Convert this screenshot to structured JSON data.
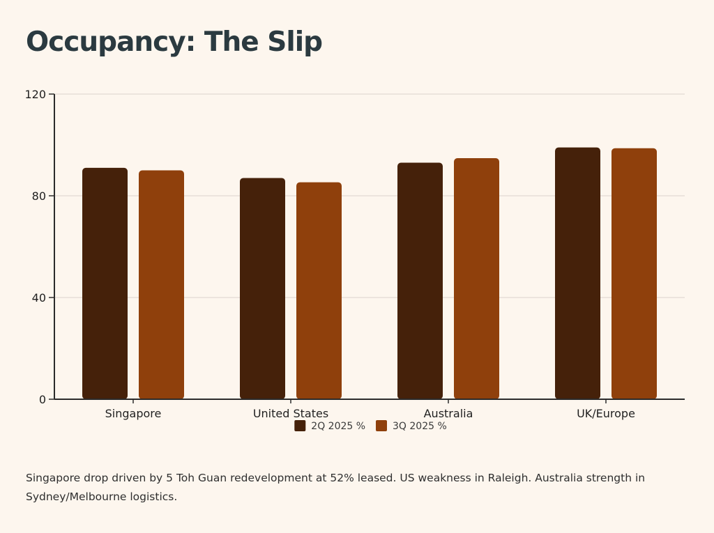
{
  "page": {
    "title": "Occupancy: The Slip"
  },
  "chart_data": {
    "type": "bar",
    "title": "Occupancy: The Slip",
    "categories": [
      "Singapore",
      "United States",
      "Australia",
      "UK/Europe"
    ],
    "series": [
      {
        "name": "2Q 2025 %",
        "color": "#45210A",
        "values": [
          91,
          87,
          93,
          99
        ]
      },
      {
        "name": "3Q 2025 %",
        "color": "#8F400C",
        "values": [
          90,
          85.3,
          94.8,
          98.7
        ]
      }
    ],
    "y_ticks": [
      0,
      40,
      80,
      120
    ],
    "ylim": [
      0,
      120
    ],
    "xlabel": "",
    "ylabel": "",
    "grid": true,
    "legend_position": "bottom-center"
  },
  "footnote": "Singapore drop driven by 5 Toh Guan redevelopment at 52% leased. US weakness in Raleigh. Australia strength in Sydney/Melbourne logistics."
}
